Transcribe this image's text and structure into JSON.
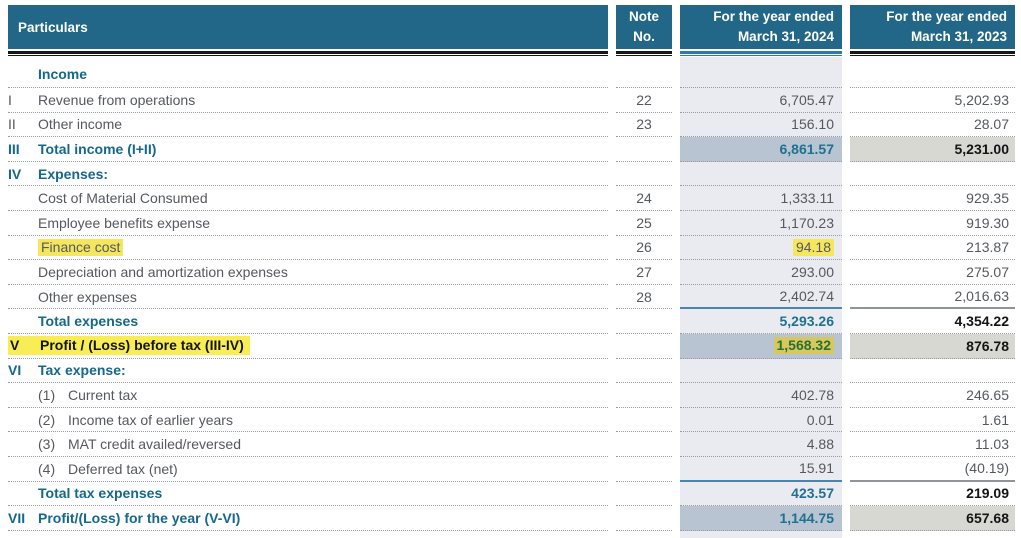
{
  "header": {
    "particulars": "Particulars",
    "note_line1": "Note",
    "note_line2": "No.",
    "fy2024_line1": "For the year ended",
    "fy2024_line2": "March 31, 2024",
    "fy2023_line1": "For the year ended",
    "fy2023_line2": "March 31, 2023"
  },
  "colors": {
    "header_teal": "#226787",
    "accent_teal": "#15678c",
    "column_2024_bg": "#e9ebf1",
    "subtotal_band_2024": "#b9c4d2",
    "subtotal_band_2023": "#d8d8d3",
    "highlight_yellow": "#f8ec57",
    "highlight_olive": "#d6c75e",
    "highlight_green_text": "#2b6f30"
  },
  "rows": [
    {
      "num": "",
      "label": "Income",
      "note": "",
      "v2024": "",
      "v2023": ""
    },
    {
      "num": "I",
      "label": "Revenue from operations",
      "note": "22",
      "v2024": "6,705.47",
      "v2023": "5,202.93"
    },
    {
      "num": "II",
      "label": "Other income",
      "note": "23",
      "v2024": "156.10",
      "v2023": "28.07"
    },
    {
      "num": "III",
      "label": "Total income (I+II)",
      "note": "",
      "v2024": "6,861.57",
      "v2023": "5,231.00"
    },
    {
      "num": "IV",
      "label": "Expenses:",
      "note": "",
      "v2024": "",
      "v2023": ""
    },
    {
      "num": "",
      "label": "Cost of Material Consumed",
      "note": "24",
      "v2024": "1,333.11",
      "v2023": "929.35"
    },
    {
      "num": "",
      "label": "Employee benefits expense",
      "note": "25",
      "v2024": "1,170.23",
      "v2023": "919.30"
    },
    {
      "num": "",
      "label": "Finance cost",
      "note": "26",
      "v2024": "94.18",
      "v2023": "213.87"
    },
    {
      "num": "",
      "label": "Depreciation and amortization expenses",
      "note": "27",
      "v2024": "293.00",
      "v2023": "275.07"
    },
    {
      "num": "",
      "label": "Other expenses",
      "note": "28",
      "v2024": "2,402.74",
      "v2023": "2,016.63"
    },
    {
      "num": "",
      "label": "Total expenses",
      "note": "",
      "v2024": "5,293.26",
      "v2023": "4,354.22"
    },
    {
      "num": "V",
      "label": "Profit / (Loss) before tax (III-IV)",
      "note": "",
      "v2024": "1,568.32",
      "v2023": "876.78"
    },
    {
      "num": "VI",
      "label": "Tax expense:",
      "note": "",
      "v2024": "",
      "v2023": ""
    },
    {
      "num": "",
      "sub": "(1)",
      "label": "Current tax",
      "note": "",
      "v2024": "402.78",
      "v2023": "246.65"
    },
    {
      "num": "",
      "sub": "(2)",
      "label": "Income tax of earlier years",
      "note": "",
      "v2024": "0.01",
      "v2023": "1.61"
    },
    {
      "num": "",
      "sub": "(3)",
      "label": "MAT credit availed/reversed",
      "note": "",
      "v2024": "4.88",
      "v2023": "11.03"
    },
    {
      "num": "",
      "sub": "(4)",
      "label": "Deferred tax (net)",
      "note": "",
      "v2024": "15.91",
      "v2023": "(40.19)"
    },
    {
      "num": "",
      "label": "Total tax expenses",
      "note": "",
      "v2024": "423.57",
      "v2023": "219.09"
    },
    {
      "num": "VII",
      "label": "Profit/(Loss) for the year (V-VI)",
      "note": "",
      "v2024": "1,144.75",
      "v2023": "657.68"
    }
  ]
}
